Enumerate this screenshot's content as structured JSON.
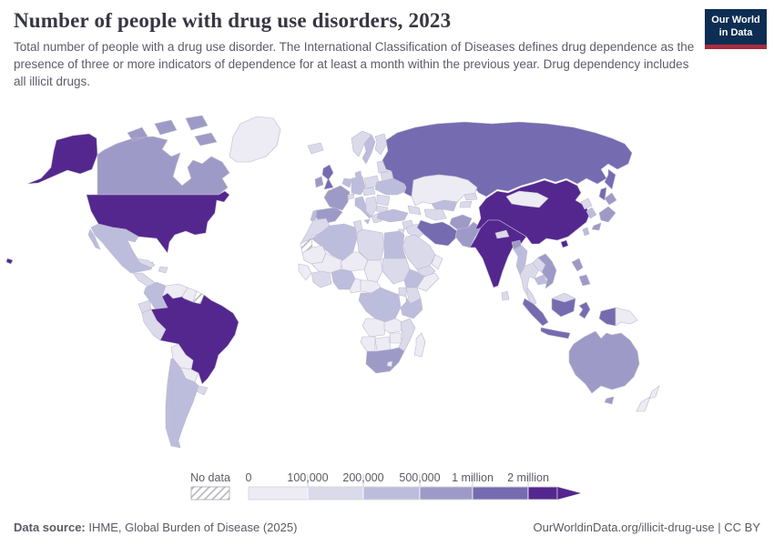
{
  "header": {
    "title": "Number of people with drug use disorders, 2023",
    "subtitle": "Total number of people with a drug use disorder. The International Classification of Diseases defines drug dependence as the presence of three or more indicators of dependence for at least a month within the previous year. Drug dependency includes all illicit drugs.",
    "logo": {
      "line1": "Our World",
      "line2": "in Data",
      "bg_color": "#0d2d52",
      "accent_color": "#a62c3f"
    }
  },
  "chart_data": {
    "type": "choropleth",
    "title": "Number of people with drug use disorders, 2023",
    "year": "2023",
    "unit": "people",
    "legend": {
      "no_data_label": "No data",
      "tick_labels": [
        "0",
        "100,000",
        "200,000",
        "500,000",
        "1 million",
        "2 million"
      ],
      "bucket_colors": [
        "#edebf4",
        "#dadaeb",
        "#bcbddc",
        "#9e9ac8",
        "#756bb1",
        "#54278f"
      ],
      "bucket_ranges": [
        "0-100,000",
        "100,000-200,000",
        "200,000-500,000",
        "500,000-1 million",
        "1-2 million",
        "2 million and more"
      ]
    },
    "countries": {
      "United States": 6,
      "Brazil": 6,
      "China": 6,
      "India": 6,
      "Russia": 5,
      "United Kingdom": 5,
      "Iran": 5,
      "Indonesia": 5,
      "Canada": 4,
      "France": 4,
      "Spain": 4,
      "Ireland": 4,
      "Australia": 4,
      "Afghanistan": 4,
      "Pakistan": 4,
      "Bangladesh": 4,
      "Vietnam": 4,
      "Philippines": 4,
      "Japan": 4,
      "South Africa": 4,
      "Mexico": 3,
      "Colombia": 3,
      "Argentina": 3,
      "Chile": 3,
      "Germany": 3,
      "Italy": 3,
      "Portugal": 3,
      "Sweden": 3,
      "Denmark": 3,
      "Benelux": 3,
      "Ukraine": 3,
      "Turkey": 3,
      "Egypt": 3,
      "Algeria": 3,
      "Nigeria": 3,
      "Ethiopia": 3,
      "Democratic Republic of Congo": 3,
      "Tanzania": 3,
      "Uzbekistan": 3,
      "Myanmar": 3,
      "Cambodia": 3,
      "South Korea": 3,
      "Taiwan": 3,
      "Peru": 2,
      "Ecuador": 2,
      "Uruguay": 2,
      "Cuba": 2,
      "Hispaniola": 2,
      "Central America": 2,
      "Iceland": 2,
      "Norway": 2,
      "Finland": 2,
      "Poland": 2,
      "Czechia and Austria": 2,
      "Switzerland": 2,
      "Balkans": 2,
      "Greece": 2,
      "Romania": 2,
      "Bulgaria": 2,
      "Belarus": 2,
      "Baltics": 2,
      "Caucasus": 2,
      "Turkmenistan": 2,
      "Kyrgyzstan": 2,
      "Tajikistan": 2,
      "Syria": 2,
      "Iraq": 2,
      "Jordan": 2,
      "Saudi Arabia": 2,
      "Yemen": 2,
      "Nepal": 2,
      "Sri Lanka": 2,
      "Thailand": 2,
      "Laos": 2,
      "Malaysia": 2,
      "North Korea": 2,
      "Morocco": 2,
      "Tunisia": 2,
      "Libya": 2,
      "Sudan": 2,
      "Ghana and Ivory Coast": 2,
      "Kenya": 2,
      "Uganda": 2,
      "Mozambique": 2,
      "Venezuela": 1,
      "Guyana": 1,
      "Bolivia": 1,
      "Paraguay": 1,
      "Greenland": 1,
      "Kazakhstan": 1,
      "Mongolia": 1,
      "Oman": 1,
      "Papua New Guinea": 1,
      "New Zealand": 1,
      "Mauritania": 1,
      "Mali": 1,
      "Niger": 1,
      "Chad": 1,
      "Senegal": 1,
      "Cameroon": 1,
      "Central African Republic": 1,
      "Somalia": 1,
      "Angola": 1,
      "Zambia": 1,
      "Zimbabwe": 1,
      "Namibia": 1,
      "Botswana": 1,
      "Lesotho": 1,
      "Madagascar": 1,
      "Western Sahara": "no_data",
      "French Guiana": "no_data"
    }
  },
  "footer": {
    "source_label": "Data source:",
    "source_text": " IHME, Global Burden of Disease (2025)",
    "right_text": "OurWorldinData.org/illicit-drug-use | CC BY"
  }
}
